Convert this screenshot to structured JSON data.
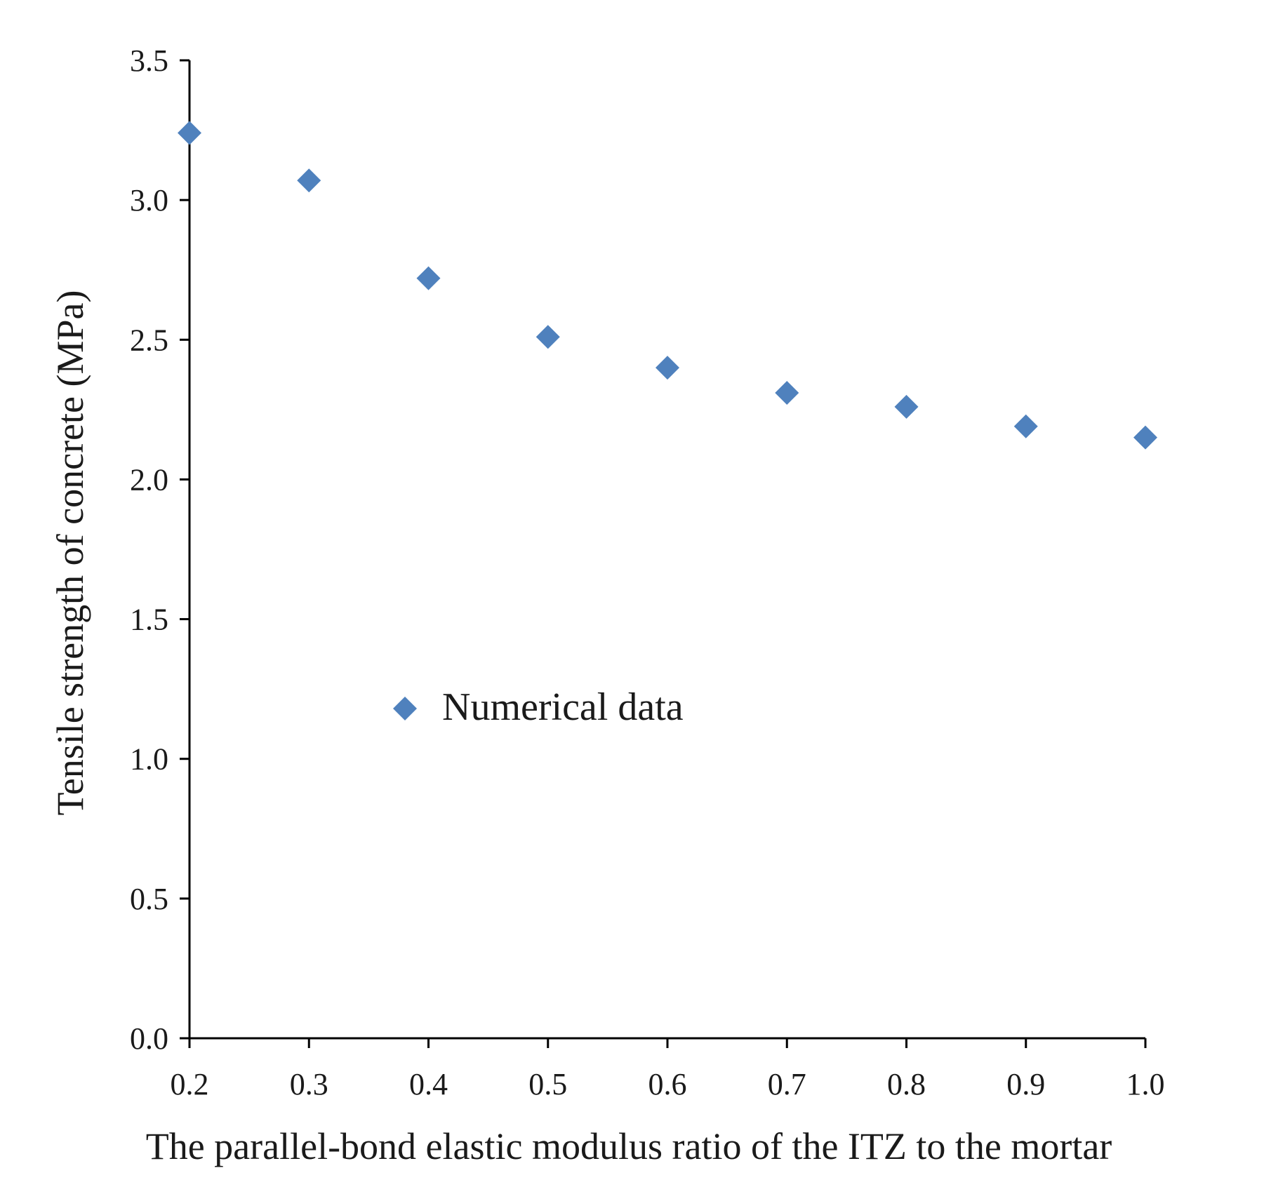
{
  "chart_data": {
    "type": "scatter",
    "title": "",
    "xlabel": "The parallel-bond elastic modulus ratio of the ITZ to the mortar",
    "ylabel": "Tensile strength of concrete (MPa)",
    "xlim": [
      0.2,
      1.0
    ],
    "ylim": [
      0.0,
      3.5
    ],
    "x_ticks": [
      "0.2",
      "0.3",
      "0.4",
      "0.5",
      "0.6",
      "0.7",
      "0.8",
      "0.9",
      "1.0"
    ],
    "y_ticks": [
      "0.0",
      "0.5",
      "1.0",
      "1.5",
      "2.0",
      "2.5",
      "3.0",
      "3.5"
    ],
    "grid": false,
    "legend": {
      "position": "center-left",
      "entries": [
        "Numerical data"
      ]
    },
    "series": [
      {
        "name": "Numerical data",
        "marker": "diamond",
        "color": "#4F81BD",
        "x": [
          0.2,
          0.3,
          0.4,
          0.5,
          0.6,
          0.7,
          0.8,
          0.9,
          1.0
        ],
        "y": [
          3.24,
          3.07,
          2.72,
          2.51,
          2.4,
          2.31,
          2.26,
          2.19,
          2.15
        ]
      }
    ]
  }
}
